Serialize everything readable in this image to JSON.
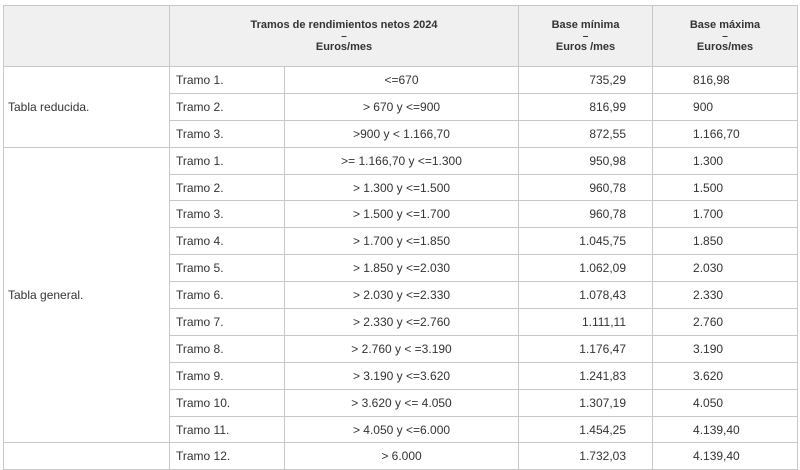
{
  "header": {
    "tramos_line1": "Tramos de rendimientos netos 2024",
    "tramos_line2": "–",
    "tramos_line3": "Euros/mes",
    "min_line1": "Base mínima",
    "min_line2": "–",
    "min_line3": "Euros /mes",
    "max_line1": "Base máxima",
    "max_line2": "–",
    "max_line3": "Euros/mes"
  },
  "groups": [
    {
      "label": "Tabla reducida.",
      "rows": [
        {
          "tramo": "Tramo 1.",
          "range": "<=670",
          "min": "735,29",
          "max": "816,98"
        },
        {
          "tramo": "Tramo 2.",
          "range": "> 670 y <=900",
          "min": "816,99",
          "max": "900"
        },
        {
          "tramo": "Tramo 3.",
          "range": ">900 y < 1.166,70",
          "min": "872,55",
          "max": "1.166,70"
        }
      ]
    },
    {
      "label": "Tabla general.",
      "rows": [
        {
          "tramo": "Tramo 1.",
          "range": ">= 1.166,70 y <=1.300",
          "min": "950,98",
          "max": "1.300"
        },
        {
          "tramo": "Tramo 2.",
          "range": "> 1.300 y <=1.500",
          "min": "960,78",
          "max": "1.500"
        },
        {
          "tramo": "Tramo 3.",
          "range": "> 1.500 y <=1.700",
          "min": "960,78",
          "max": "1.700"
        },
        {
          "tramo": "Tramo 4.",
          "range": "> 1.700 y <=1.850",
          "min": "1.045,75",
          "max": "1.850"
        },
        {
          "tramo": "Tramo 5.",
          "range": "> 1.850 y <=2.030",
          "min": "1.062,09",
          "max": "2.030"
        },
        {
          "tramo": "Tramo 6.",
          "range": "> 2.030 y <=2.330",
          "min": "1.078,43",
          "max": "2.330"
        },
        {
          "tramo": "Tramo 7.",
          "range": "> 2.330 y <=2.760",
          "min": "1.111,11",
          "max": "2.760"
        },
        {
          "tramo": "Tramo 8.",
          "range": "> 2.760 y < =3.190",
          "min": "1.176,47",
          "max": "3.190"
        },
        {
          "tramo": "Tramo 9.",
          "range": "> 3.190 y <=3.620",
          "min": "1.241,83",
          "max": "3.620"
        },
        {
          "tramo": "Tramo 10.",
          "range": "> 3.620 y <= 4.050",
          "min": "1.307,19",
          "max": "4.050"
        },
        {
          "tramo": "Tramo 11.",
          "range": "> 4.050 y <=6.000",
          "min": "1.454,25",
          "max": "4.139,40"
        }
      ]
    },
    {
      "label": "",
      "rows": [
        {
          "tramo": "Tramo 12.",
          "range": "> 6.000",
          "min": "1.732,03",
          "max": "4.139,40"
        }
      ]
    }
  ]
}
